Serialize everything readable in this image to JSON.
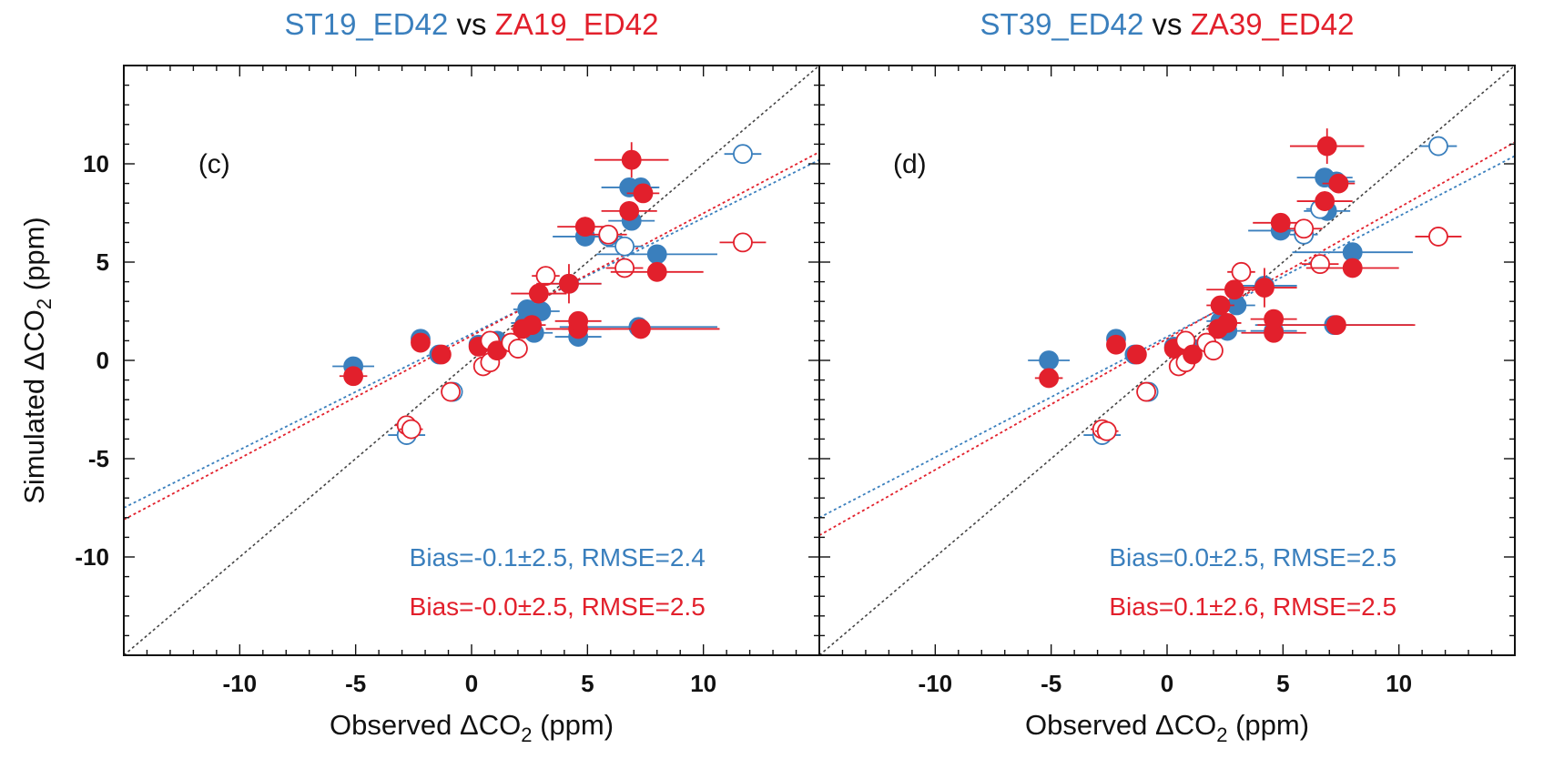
{
  "colors": {
    "blue": "#3a7fbd",
    "red": "#e2202c",
    "black": "#111111",
    "diag": "#444444"
  },
  "chart_data": [
    {
      "type": "scatter",
      "panel_label": "(c)",
      "title": {
        "left": "ST19_ED42",
        "mid": "vs",
        "right": "ZA19_ED42"
      },
      "xlabel": {
        "pre": "Observed ",
        "delta": "Δ",
        "co": "CO",
        "sub": "2",
        "post": " (ppm)"
      },
      "ylabel": {
        "pre": "Simulated ",
        "delta": "Δ",
        "co": "CO",
        "sub": "2",
        "post": " (ppm)"
      },
      "xlim": [
        -15,
        15
      ],
      "ylim": [
        -15,
        15
      ],
      "xticks": [
        -10,
        -5,
        0,
        5,
        10
      ],
      "yticks": [
        -10,
        -5,
        0,
        5,
        10
      ],
      "stats": {
        "blue": {
          "pre": "Bias=-0.1",
          "pm": "±",
          "post": "2.5, RMSE=2.4"
        },
        "red": {
          "pre": "Bias=-0.0",
          "pm": "±",
          "post": "2.5, RMSE=2.5"
        }
      },
      "fit_lines": [
        {
          "series": "blue",
          "from": [
            -15,
            -7.5
          ],
          "to": [
            15,
            10.2
          ]
        },
        {
          "series": "red",
          "from": [
            -15,
            -8.1
          ],
          "to": [
            15,
            10.6
          ]
        }
      ],
      "series": [
        {
          "color": "blue",
          "points": [
            {
              "x": -5.1,
              "y": -0.3,
              "xerr": 0.9,
              "yerr": 0.3,
              "filled": true
            },
            {
              "x": -2.2,
              "y": 1.1,
              "xerr": 0.4,
              "yerr": 0.3,
              "filled": true
            },
            {
              "x": -1.4,
              "y": 0.3,
              "xerr": 0.4,
              "yerr": 0.3,
              "filled": true
            },
            {
              "x": -2.8,
              "y": -3.8,
              "xerr": 0.8,
              "yerr": 0.3,
              "filled": false
            },
            {
              "x": -0.8,
              "y": -1.6,
              "xerr": 0.4,
              "yerr": 0.3,
              "filled": false
            },
            {
              "x": 0.3,
              "y": 0.8,
              "xerr": 0.4,
              "yerr": 0.3,
              "filled": true
            },
            {
              "x": 1.1,
              "y": 1.0,
              "xerr": 0.5,
              "yerr": 0.3,
              "filled": true
            },
            {
              "x": 2.3,
              "y": 1.9,
              "xerr": 0.6,
              "yerr": 0.3,
              "filled": true
            },
            {
              "x": 2.4,
              "y": 2.6,
              "xerr": 0.6,
              "yerr": 0.3,
              "filled": true
            },
            {
              "x": 2.7,
              "y": 1.4,
              "xerr": 0.8,
              "yerr": 0.3,
              "filled": true
            },
            {
              "x": 3.0,
              "y": 2.5,
              "xerr": 0.8,
              "yerr": 0.3,
              "filled": true
            },
            {
              "x": 4.2,
              "y": 3.9,
              "xerr": 1.4,
              "yerr": 0.3,
              "filled": true
            },
            {
              "x": 4.6,
              "y": 1.2,
              "xerr": 1.0,
              "yerr": 0.3,
              "filled": true
            },
            {
              "x": 4.9,
              "y": 6.3,
              "xerr": 1.4,
              "yerr": 0.3,
              "filled": true
            },
            {
              "x": 6.8,
              "y": 8.8,
              "xerr": 1.2,
              "yerr": 0.3,
              "filled": true
            },
            {
              "x": 7.3,
              "y": 8.8,
              "xerr": 0.8,
              "yerr": 0.3,
              "filled": true
            },
            {
              "x": 6.9,
              "y": 7.1,
              "xerr": 1.0,
              "yerr": 0.3,
              "filled": true
            },
            {
              "x": 7.2,
              "y": 1.7,
              "xerr": 3.4,
              "yerr": 0.3,
              "filled": true
            },
            {
              "x": 8.0,
              "y": 5.4,
              "xerr": 2.6,
              "yerr": 0.3,
              "filled": true
            },
            {
              "x": 11.7,
              "y": 10.5,
              "xerr": 0.8,
              "yerr": 0.3,
              "filled": false
            },
            {
              "x": 6.6,
              "y": 5.8,
              "xerr": 0.8,
              "yerr": 0.4,
              "filled": false
            },
            {
              "x": 5.9,
              "y": 6.3,
              "xerr": 0.6,
              "yerr": 0.3,
              "filled": false
            }
          ]
        },
        {
          "color": "red",
          "points": [
            {
              "x": -5.1,
              "y": -0.8,
              "xerr": 0.6,
              "yerr": 0.3,
              "filled": true
            },
            {
              "x": -2.2,
              "y": 0.9,
              "xerr": 0.4,
              "yerr": 0.3,
              "filled": true
            },
            {
              "x": -1.3,
              "y": 0.3,
              "xerr": 0.4,
              "yerr": 0.3,
              "filled": true
            },
            {
              "x": -2.8,
              "y": -3.3,
              "xerr": 0.5,
              "yerr": 0.3,
              "filled": false
            },
            {
              "x": -2.6,
              "y": -3.5,
              "xerr": 0.5,
              "yerr": 0.3,
              "filled": false
            },
            {
              "x": -0.9,
              "y": -1.6,
              "xerr": 0.4,
              "yerr": 0.3,
              "filled": false
            },
            {
              "x": 0.3,
              "y": 0.7,
              "xerr": 0.3,
              "yerr": 0.3,
              "filled": true
            },
            {
              "x": 0.5,
              "y": -0.3,
              "xerr": 0.4,
              "yerr": 0.3,
              "filled": false
            },
            {
              "x": 0.8,
              "y": -0.1,
              "xerr": 0.4,
              "yerr": 0.3,
              "filled": false
            },
            {
              "x": 0.8,
              "y": 1.0,
              "xerr": 0.3,
              "yerr": 0.3,
              "filled": false
            },
            {
              "x": 1.1,
              "y": 0.5,
              "xerr": 0.4,
              "yerr": 0.3,
              "filled": true
            },
            {
              "x": 1.7,
              "y": 0.9,
              "xerr": 0.4,
              "yerr": 0.3,
              "filled": false
            },
            {
              "x": 2.0,
              "y": 0.6,
              "xerr": 0.4,
              "yerr": 0.3,
              "filled": false
            },
            {
              "x": 2.2,
              "y": 1.6,
              "xerr": 0.5,
              "yerr": 0.3,
              "filled": true
            },
            {
              "x": 2.6,
              "y": 1.8,
              "xerr": 0.6,
              "yerr": 0.3,
              "filled": true
            },
            {
              "x": 2.9,
              "y": 3.4,
              "xerr": 1.2,
              "yerr": 0.3,
              "filled": true
            },
            {
              "x": 3.2,
              "y": 4.3,
              "xerr": 0.6,
              "yerr": 0.3,
              "filled": false
            },
            {
              "x": 4.2,
              "y": 3.9,
              "xerr": 1.4,
              "yerr": 1.0,
              "filled": true
            },
            {
              "x": 4.6,
              "y": 1.6,
              "xerr": 1.4,
              "yerr": 0.3,
              "filled": true
            },
            {
              "x": 4.6,
              "y": 2.0,
              "xerr": 1.0,
              "yerr": 0.3,
              "filled": true
            },
            {
              "x": 4.9,
              "y": 6.8,
              "xerr": 1.2,
              "yerr": 0.5,
              "filled": true
            },
            {
              "x": 5.9,
              "y": 6.4,
              "xerr": 0.8,
              "yerr": 0.4,
              "filled": false
            },
            {
              "x": 6.6,
              "y": 4.7,
              "xerr": 0.8,
              "yerr": 0.4,
              "filled": false
            },
            {
              "x": 6.9,
              "y": 10.2,
              "xerr": 1.6,
              "yerr": 0.9,
              "filled": true
            },
            {
              "x": 6.8,
              "y": 7.6,
              "xerr": 1.2,
              "yerr": 0.5,
              "filled": true
            },
            {
              "x": 7.4,
              "y": 8.5,
              "xerr": 0.7,
              "yerr": 0.3,
              "filled": true
            },
            {
              "x": 7.3,
              "y": 1.6,
              "xerr": 3.4,
              "yerr": 0.3,
              "filled": true
            },
            {
              "x": 8.0,
              "y": 4.5,
              "xerr": 2.0,
              "yerr": 0.3,
              "filled": true
            },
            {
              "x": 11.7,
              "y": 6.0,
              "xerr": 1.0,
              "yerr": 0.3,
              "filled": false
            }
          ]
        }
      ]
    },
    {
      "type": "scatter",
      "panel_label": "(d)",
      "title": {
        "left": "ST39_ED42",
        "mid": "vs",
        "right": "ZA39_ED42"
      },
      "xlabel": {
        "pre": "Observed ",
        "delta": "Δ",
        "co": "CO",
        "sub": "2",
        "post": " (ppm)"
      },
      "ylabel": null,
      "xlim": [
        -15,
        15
      ],
      "ylim": [
        -15,
        15
      ],
      "xticks": [
        -10,
        -5,
        0,
        5,
        10
      ],
      "yticks": [
        -10,
        -5,
        0,
        5,
        10
      ],
      "stats": {
        "blue": {
          "pre": "Bias=0.0",
          "pm": "±",
          "post": "2.5, RMSE=2.5"
        },
        "red": {
          "pre": "Bias=0.1",
          "pm": "±",
          "post": "2.6, RMSE=2.5"
        }
      },
      "fit_lines": [
        {
          "series": "blue",
          "from": [
            -15,
            -8.0
          ],
          "to": [
            15,
            10.4
          ]
        },
        {
          "series": "red",
          "from": [
            -15,
            -8.9
          ],
          "to": [
            15,
            11.1
          ]
        }
      ],
      "series": [
        {
          "color": "blue",
          "points": [
            {
              "x": -5.1,
              "y": 0.0,
              "xerr": 0.9,
              "yerr": 0.3,
              "filled": true
            },
            {
              "x": -2.2,
              "y": 1.1,
              "xerr": 0.4,
              "yerr": 0.3,
              "filled": true
            },
            {
              "x": -1.4,
              "y": 0.3,
              "xerr": 0.4,
              "yerr": 0.3,
              "filled": true
            },
            {
              "x": -2.8,
              "y": -3.8,
              "xerr": 0.8,
              "yerr": 0.3,
              "filled": false
            },
            {
              "x": -0.8,
              "y": -1.6,
              "xerr": 0.4,
              "yerr": 0.3,
              "filled": false
            },
            {
              "x": 0.3,
              "y": 0.7,
              "xerr": 0.4,
              "yerr": 0.3,
              "filled": true
            },
            {
              "x": 1.1,
              "y": 0.6,
              "xerr": 0.5,
              "yerr": 0.3,
              "filled": true
            },
            {
              "x": 2.3,
              "y": 2.0,
              "xerr": 0.6,
              "yerr": 0.3,
              "filled": true
            },
            {
              "x": 2.6,
              "y": 1.5,
              "xerr": 0.8,
              "yerr": 0.3,
              "filled": true
            },
            {
              "x": 3.0,
              "y": 2.8,
              "xerr": 0.8,
              "yerr": 0.3,
              "filled": true
            },
            {
              "x": 4.2,
              "y": 3.8,
              "xerr": 1.4,
              "yerr": 0.3,
              "filled": true
            },
            {
              "x": 4.6,
              "y": 1.5,
              "xerr": 1.0,
              "yerr": 0.3,
              "filled": true
            },
            {
              "x": 4.9,
              "y": 6.6,
              "xerr": 1.4,
              "yerr": 0.3,
              "filled": true
            },
            {
              "x": 6.8,
              "y": 9.3,
              "xerr": 1.2,
              "yerr": 0.3,
              "filled": true
            },
            {
              "x": 7.3,
              "y": 9.1,
              "xerr": 0.8,
              "yerr": 0.3,
              "filled": true
            },
            {
              "x": 6.9,
              "y": 7.6,
              "xerr": 1.0,
              "yerr": 0.3,
              "filled": true
            },
            {
              "x": 7.2,
              "y": 1.8,
              "xerr": 3.4,
              "yerr": 0.3,
              "filled": true
            },
            {
              "x": 8.0,
              "y": 5.5,
              "xerr": 2.6,
              "yerr": 0.3,
              "filled": true
            },
            {
              "x": 11.7,
              "y": 10.9,
              "xerr": 0.8,
              "yerr": 0.3,
              "filled": false
            },
            {
              "x": 6.6,
              "y": 7.7,
              "xerr": 0.6,
              "yerr": 0.4,
              "filled": false
            },
            {
              "x": 5.9,
              "y": 6.4,
              "xerr": 0.6,
              "yerr": 0.3,
              "filled": false
            }
          ]
        },
        {
          "color": "red",
          "points": [
            {
              "x": -5.1,
              "y": -0.9,
              "xerr": 0.6,
              "yerr": 0.3,
              "filled": true
            },
            {
              "x": -2.2,
              "y": 0.8,
              "xerr": 0.4,
              "yerr": 0.3,
              "filled": true
            },
            {
              "x": -1.3,
              "y": 0.3,
              "xerr": 0.4,
              "yerr": 0.3,
              "filled": true
            },
            {
              "x": -2.8,
              "y": -3.5,
              "xerr": 0.5,
              "yerr": 0.3,
              "filled": false
            },
            {
              "x": -2.6,
              "y": -3.6,
              "xerr": 0.5,
              "yerr": 0.3,
              "filled": false
            },
            {
              "x": -0.9,
              "y": -1.6,
              "xerr": 0.4,
              "yerr": 0.3,
              "filled": false
            },
            {
              "x": 0.3,
              "y": 0.6,
              "xerr": 0.3,
              "yerr": 0.3,
              "filled": true
            },
            {
              "x": 0.5,
              "y": -0.3,
              "xerr": 0.4,
              "yerr": 0.3,
              "filled": false
            },
            {
              "x": 0.8,
              "y": -0.1,
              "xerr": 0.4,
              "yerr": 0.3,
              "filled": false
            },
            {
              "x": 0.8,
              "y": 1.0,
              "xerr": 0.3,
              "yerr": 0.3,
              "filled": false
            },
            {
              "x": 1.1,
              "y": 0.3,
              "xerr": 0.4,
              "yerr": 0.3,
              "filled": true
            },
            {
              "x": 1.7,
              "y": 0.9,
              "xerr": 0.4,
              "yerr": 0.3,
              "filled": false
            },
            {
              "x": 2.0,
              "y": 0.5,
              "xerr": 0.4,
              "yerr": 0.3,
              "filled": false
            },
            {
              "x": 2.2,
              "y": 1.6,
              "xerr": 0.5,
              "yerr": 0.3,
              "filled": true
            },
            {
              "x": 2.3,
              "y": 2.8,
              "xerr": 0.6,
              "yerr": 0.3,
              "filled": true
            },
            {
              "x": 2.6,
              "y": 1.9,
              "xerr": 0.6,
              "yerr": 0.3,
              "filled": true
            },
            {
              "x": 2.9,
              "y": 3.6,
              "xerr": 1.2,
              "yerr": 0.3,
              "filled": true
            },
            {
              "x": 3.2,
              "y": 4.5,
              "xerr": 0.6,
              "yerr": 0.3,
              "filled": false
            },
            {
              "x": 4.2,
              "y": 3.7,
              "xerr": 1.4,
              "yerr": 1.0,
              "filled": true
            },
            {
              "x": 4.6,
              "y": 1.4,
              "xerr": 1.4,
              "yerr": 0.3,
              "filled": true
            },
            {
              "x": 4.6,
              "y": 2.1,
              "xerr": 1.0,
              "yerr": 0.3,
              "filled": true
            },
            {
              "x": 4.9,
              "y": 7.0,
              "xerr": 1.2,
              "yerr": 0.5,
              "filled": true
            },
            {
              "x": 5.9,
              "y": 6.7,
              "xerr": 0.8,
              "yerr": 0.4,
              "filled": false
            },
            {
              "x": 6.6,
              "y": 4.9,
              "xerr": 0.8,
              "yerr": 0.4,
              "filled": false
            },
            {
              "x": 6.9,
              "y": 10.9,
              "xerr": 1.6,
              "yerr": 0.9,
              "filled": true
            },
            {
              "x": 6.8,
              "y": 8.1,
              "xerr": 1.2,
              "yerr": 0.5,
              "filled": true
            },
            {
              "x": 7.4,
              "y": 9.0,
              "xerr": 0.7,
              "yerr": 0.3,
              "filled": true
            },
            {
              "x": 7.3,
              "y": 1.8,
              "xerr": 3.4,
              "yerr": 0.3,
              "filled": true
            },
            {
              "x": 8.0,
              "y": 4.7,
              "xerr": 2.0,
              "yerr": 0.3,
              "filled": true
            },
            {
              "x": 11.7,
              "y": 6.3,
              "xerr": 1.0,
              "yerr": 0.3,
              "filled": false
            }
          ]
        }
      ]
    }
  ]
}
